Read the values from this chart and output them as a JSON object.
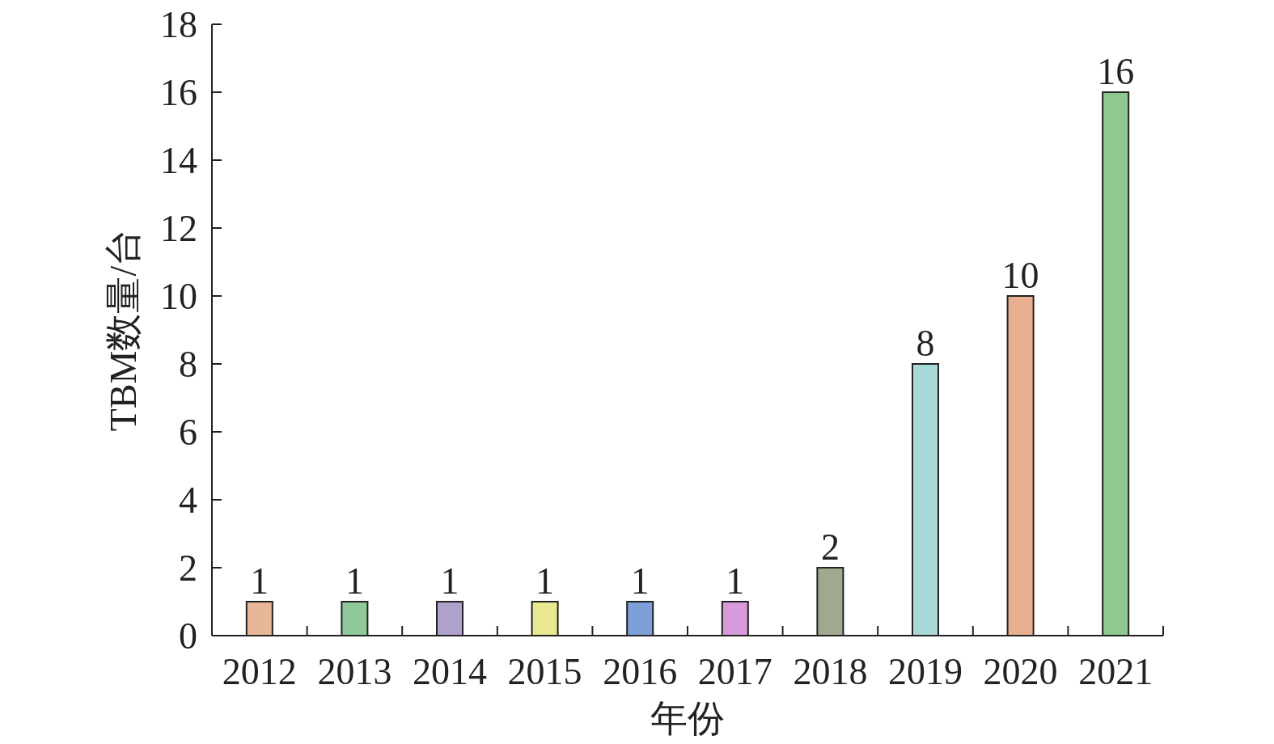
{
  "chart_data": {
    "type": "bar",
    "xlabel": "年份",
    "ylabel": "TBM数量/台",
    "categories": [
      "2012",
      "2013",
      "2014",
      "2015",
      "2016",
      "2017",
      "2018",
      "2019",
      "2020",
      "2021"
    ],
    "values": [
      1,
      1,
      1,
      1,
      1,
      1,
      2,
      8,
      10,
      16
    ],
    "colors": [
      "#e8b79a",
      "#8fc99a",
      "#b0a0cc",
      "#e8e890",
      "#7f9fd8",
      "#d89ad8",
      "#a0a890",
      "#a8d8d8",
      "#e8b090",
      "#90c890"
    ],
    "ylim": [
      0,
      18
    ],
    "yticks": [
      0,
      2,
      4,
      6,
      8,
      10,
      12,
      14,
      16,
      18
    ],
    "data_labels": true
  }
}
